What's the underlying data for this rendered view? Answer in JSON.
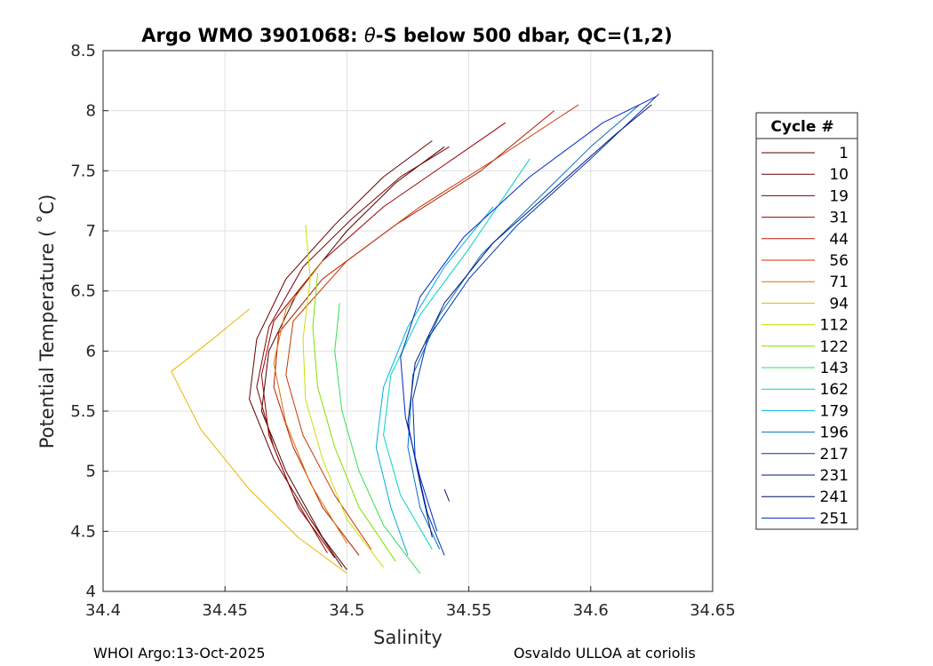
{
  "chart_data": {
    "type": "line",
    "title_prefix": "Argo WMO 3901068: ",
    "title_symbol": "θ",
    "title_suffix": "-S below 500 dbar,  QC=(1,2)",
    "xlabel": "Salinity",
    "ylabel": "Potential Temperature ( ˚C)",
    "xlim": [
      34.4,
      34.65
    ],
    "ylim": [
      4,
      8.5
    ],
    "xticks": [
      "34.4",
      "34.45",
      "34.5",
      "34.55",
      "34.6",
      "34.65"
    ],
    "xtick_values": [
      34.4,
      34.45,
      34.5,
      34.55,
      34.6,
      34.65
    ],
    "yticks": [
      "4",
      "4.5",
      "5",
      "5.5",
      "6",
      "6.5",
      "7",
      "7.5",
      "8",
      "8.5"
    ],
    "ytick_values": [
      4,
      4.5,
      5,
      5.5,
      6,
      6.5,
      7,
      7.5,
      8,
      8.5
    ],
    "grid": true,
    "legend_position": "right",
    "legend_title": "Cycle #",
    "series": [
      {
        "name": "1",
        "color": "#4d0000",
        "points": [
          [
            34.5,
            4.18
          ],
          [
            34.49,
            4.45
          ],
          [
            34.475,
            5.0
          ],
          [
            34.465,
            5.5
          ],
          [
            34.468,
            6.0
          ],
          [
            34.48,
            6.5
          ],
          [
            34.5,
            7.0
          ],
          [
            34.52,
            7.4
          ],
          [
            34.54,
            7.7
          ]
        ]
      },
      {
        "name": "10",
        "color": "#660000",
        "points": [
          [
            34.498,
            4.2
          ],
          [
            34.485,
            4.6
          ],
          [
            34.47,
            5.1
          ],
          [
            34.46,
            5.6
          ],
          [
            34.463,
            6.1
          ],
          [
            34.475,
            6.6
          ],
          [
            34.495,
            7.05
          ],
          [
            34.515,
            7.45
          ],
          [
            34.535,
            7.75
          ]
        ]
      },
      {
        "name": "19",
        "color": "#800000",
        "points": [
          [
            34.495,
            4.28
          ],
          [
            34.48,
            4.7
          ],
          [
            34.47,
            5.2
          ],
          [
            34.463,
            5.7
          ],
          [
            34.468,
            6.2
          ],
          [
            34.482,
            6.7
          ],
          [
            34.502,
            7.1
          ],
          [
            34.522,
            7.45
          ],
          [
            34.542,
            7.7
          ]
        ]
      },
      {
        "name": "31",
        "color": "#990000",
        "points": [
          [
            34.492,
            4.32
          ],
          [
            34.478,
            4.8
          ],
          [
            34.468,
            5.3
          ],
          [
            34.465,
            5.8
          ],
          [
            34.47,
            6.25
          ],
          [
            34.49,
            6.75
          ],
          [
            34.515,
            7.2
          ],
          [
            34.54,
            7.55
          ],
          [
            34.565,
            7.9
          ]
        ]
      },
      {
        "name": "44",
        "color": "#b31a00",
        "points": [
          [
            34.505,
            4.3
          ],
          [
            34.49,
            4.7
          ],
          [
            34.478,
            5.2
          ],
          [
            34.47,
            5.7
          ],
          [
            34.472,
            6.15
          ],
          [
            34.49,
            6.6
          ],
          [
            34.52,
            7.05
          ],
          [
            34.555,
            7.5
          ],
          [
            34.585,
            8.0
          ]
        ]
      },
      {
        "name": "56",
        "color": "#cc3300",
        "points": [
          [
            34.51,
            4.35
          ],
          [
            34.495,
            4.8
          ],
          [
            34.482,
            5.3
          ],
          [
            34.475,
            5.8
          ],
          [
            34.478,
            6.25
          ],
          [
            34.5,
            6.75
          ],
          [
            34.53,
            7.2
          ],
          [
            34.565,
            7.65
          ],
          [
            34.595,
            8.05
          ]
        ]
      },
      {
        "name": "71",
        "color": "#e07000",
        "points": [
          [
            34.5,
            4.4
          ],
          [
            34.485,
            4.9
          ],
          [
            34.475,
            5.4
          ],
          [
            34.47,
            5.9
          ],
          [
            34.475,
            6.35
          ],
          [
            34.49,
            6.75
          ]
        ]
      },
      {
        "name": "94",
        "color": "#e6b800",
        "points": [
          [
            34.5,
            4.15
          ],
          [
            34.48,
            4.45
          ],
          [
            34.46,
            4.85
          ],
          [
            34.44,
            5.35
          ],
          [
            34.428,
            5.83
          ],
          [
            34.445,
            6.1
          ],
          [
            34.46,
            6.35
          ]
        ]
      },
      {
        "name": "112",
        "color": "#c8e000",
        "points": [
          [
            34.515,
            4.2
          ],
          [
            34.5,
            4.6
          ],
          [
            34.49,
            5.1
          ],
          [
            34.483,
            5.6
          ],
          [
            34.482,
            6.1
          ],
          [
            34.485,
            6.6
          ],
          [
            34.483,
            7.05
          ]
        ]
      },
      {
        "name": "122",
        "color": "#7ee000",
        "points": [
          [
            34.52,
            4.25
          ],
          [
            34.505,
            4.7
          ],
          [
            34.495,
            5.2
          ],
          [
            34.488,
            5.7
          ],
          [
            34.486,
            6.2
          ],
          [
            34.488,
            6.65
          ]
        ]
      },
      {
        "name": "143",
        "color": "#33dd55",
        "points": [
          [
            34.53,
            4.15
          ],
          [
            34.515,
            4.55
          ],
          [
            34.505,
            5.0
          ],
          [
            34.498,
            5.5
          ],
          [
            34.495,
            6.0
          ],
          [
            34.497,
            6.4
          ]
        ]
      },
      {
        "name": "162",
        "color": "#00d4c0",
        "points": [
          [
            34.535,
            4.35
          ],
          [
            34.522,
            4.8
          ],
          [
            34.515,
            5.3
          ],
          [
            34.518,
            5.8
          ],
          [
            34.53,
            6.3
          ],
          [
            34.55,
            6.85
          ],
          [
            34.575,
            7.6
          ]
        ]
      },
      {
        "name": "179",
        "color": "#00b0d8",
        "points": [
          [
            34.525,
            4.3
          ],
          [
            34.518,
            4.7
          ],
          [
            34.512,
            5.2
          ],
          [
            34.515,
            5.7
          ],
          [
            34.525,
            6.2
          ],
          [
            34.54,
            6.7
          ],
          [
            34.56,
            7.2
          ]
        ]
      },
      {
        "name": "196",
        "color": "#0070c0",
        "points": [
          [
            34.538,
            4.35
          ],
          [
            34.53,
            4.7
          ],
          [
            34.525,
            5.2
          ],
          [
            34.527,
            5.8
          ],
          [
            34.538,
            6.3
          ],
          [
            34.555,
            6.8
          ],
          [
            34.58,
            7.3
          ],
          [
            34.6,
            7.7
          ],
          [
            34.62,
            8.05
          ]
        ]
      },
      {
        "name": "217",
        "color": "#0033aa",
        "points": [
          [
            34.54,
            4.3
          ],
          [
            34.533,
            4.65
          ],
          [
            34.528,
            5.1
          ],
          [
            34.527,
            5.6
          ],
          [
            34.533,
            6.1
          ],
          [
            34.55,
            6.6
          ],
          [
            34.57,
            7.05
          ],
          [
            34.6,
            7.6
          ],
          [
            34.628,
            8.14
          ]
        ]
      },
      {
        "name": "231",
        "color": "#001a80",
        "points": [
          [
            34.535,
            4.45
          ],
          [
            34.53,
            4.9
          ],
          [
            34.525,
            5.4
          ],
          [
            34.528,
            5.9
          ],
          [
            34.54,
            6.4
          ],
          [
            34.56,
            6.9
          ],
          [
            34.585,
            7.35
          ],
          [
            34.61,
            7.8
          ],
          [
            34.625,
            8.05
          ]
        ]
      },
      {
        "name": "241",
        "color": "#000e60",
        "points": [
          [
            34.54,
            4.85
          ],
          [
            34.542,
            4.75
          ]
        ]
      },
      {
        "name": "251",
        "color": "#0028c8",
        "points": [
          [
            34.537,
            4.5
          ],
          [
            34.53,
            4.95
          ],
          [
            34.524,
            5.45
          ],
          [
            34.522,
            5.95
          ],
          [
            34.53,
            6.45
          ],
          [
            34.548,
            6.95
          ],
          [
            34.575,
            7.45
          ],
          [
            34.605,
            7.9
          ],
          [
            34.627,
            8.12
          ]
        ]
      }
    ]
  },
  "footer": {
    "left": "WHOI Argo:13-Oct-2025",
    "right": "Osvaldo ULLOA at coriolis"
  }
}
